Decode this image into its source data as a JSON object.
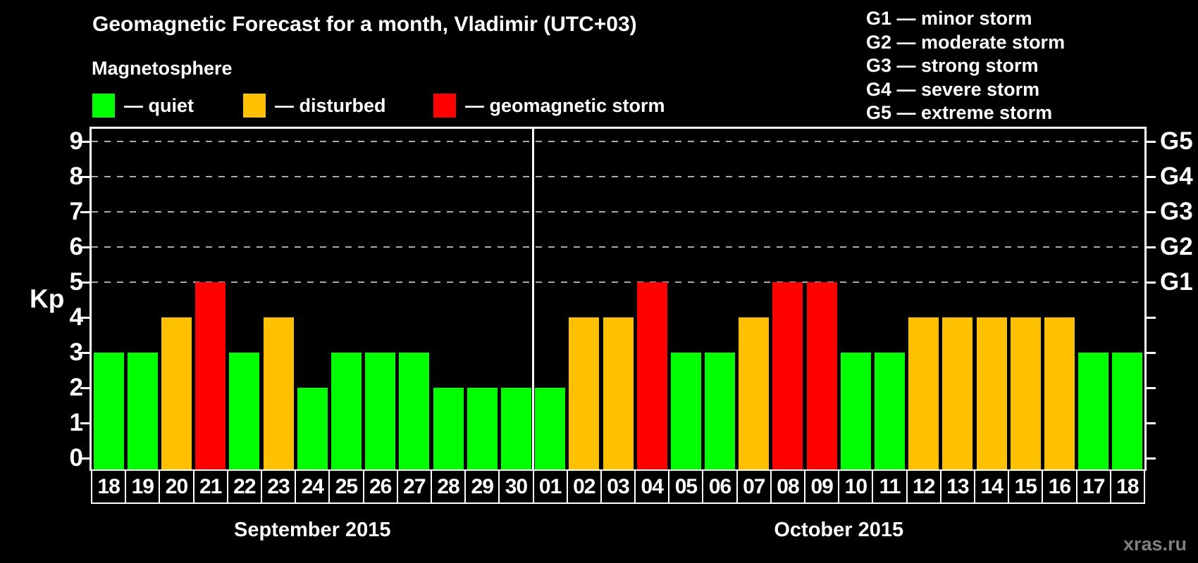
{
  "header": {
    "title": "Geomagnetic Forecast for a month, Vladimir (UTC+03)"
  },
  "legend": {
    "title": "Magnetosphere",
    "items": [
      {
        "name": "quiet",
        "label": "— quiet",
        "color": "#00ff00"
      },
      {
        "name": "disturbed",
        "label": "— disturbed",
        "color": "#ffc000"
      },
      {
        "name": "storm",
        "label": "— geomagnetic storm",
        "color": "#ff0000"
      }
    ]
  },
  "storm_scale": {
    "items": [
      {
        "text": "G1 — minor storm"
      },
      {
        "text": "G2 — moderate storm"
      },
      {
        "text": "G3 — strong storm"
      },
      {
        "text": "G4 — severe storm"
      },
      {
        "text": "G5 — extreme storm"
      }
    ]
  },
  "chart_data": {
    "type": "bar",
    "title": "Geomagnetic Forecast for a month, Vladimir (UTC+03)",
    "xlabel": "",
    "ylabel": "Kp",
    "ylim": [
      0,
      9.5
    ],
    "yticks": [
      "0",
      "1",
      "2",
      "3",
      "4",
      "5",
      "6",
      "7",
      "8",
      "9"
    ],
    "gridlines_at_kp": [
      5,
      6,
      7,
      8,
      9
    ],
    "right_axis": {
      "labels": [
        "G1",
        "G2",
        "G3",
        "G4",
        "G5"
      ],
      "at_kp": [
        5,
        6,
        7,
        8,
        9
      ]
    },
    "legend_position": "top-left",
    "grid": "dashed horizontal at storm levels only",
    "months": [
      {
        "label": "September 2015",
        "days": [
          "18",
          "19",
          "20",
          "21",
          "22",
          "23",
          "24",
          "25",
          "26",
          "27",
          "28",
          "29",
          "30"
        ],
        "values": [
          3,
          3,
          4,
          5,
          3,
          4,
          2,
          3,
          3,
          3,
          2,
          2,
          2
        ]
      },
      {
        "label": "October 2015",
        "days": [
          "01",
          "02",
          "03",
          "04",
          "05",
          "06",
          "07",
          "08",
          "09",
          "10",
          "11",
          "12",
          "13",
          "14",
          "15",
          "16",
          "17",
          "18"
        ],
        "values": [
          2,
          4,
          4,
          5,
          3,
          3,
          4,
          5,
          5,
          3,
          3,
          4,
          4,
          4,
          4,
          4,
          3,
          3
        ]
      }
    ],
    "color_rules": {
      "quiet_max_kp": 3,
      "disturbed_kp": 4,
      "storm_min_kp": 5
    },
    "colors": {
      "quiet": "#00ff00",
      "disturbed": "#ffc000",
      "storm": "#ff0000"
    }
  },
  "watermark": {
    "text": "xras.ru"
  }
}
